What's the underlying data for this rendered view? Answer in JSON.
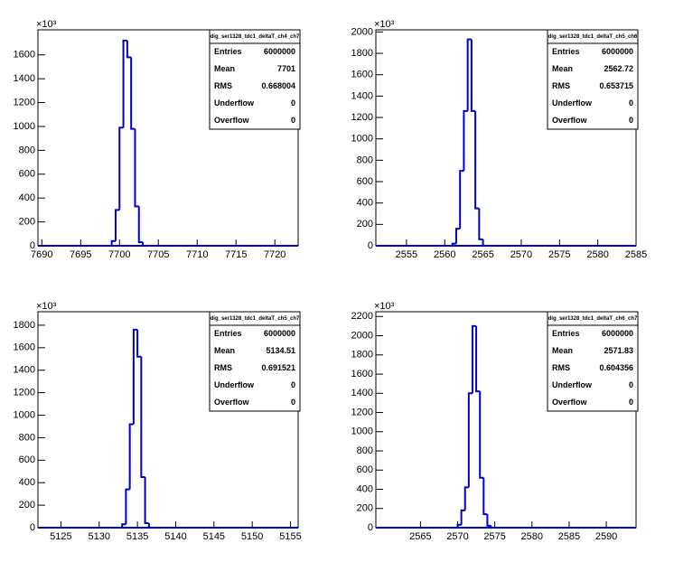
{
  "chart_data": [
    {
      "type": "histogram",
      "y_exponent_label": "×10³",
      "bins": [
        7699,
        7699.5,
        7700,
        7700.5,
        7701,
        7701.5,
        7702,
        7702.5,
        7703
      ],
      "counts": [
        40,
        300,
        990,
        1720,
        1580,
        980,
        330,
        30
      ],
      "color": "#0000cc",
      "xlim": [
        7689.5,
        7723
      ],
      "xticks": [
        7690,
        7695,
        7700,
        7705,
        7710,
        7715,
        7720
      ],
      "ylim": [
        0,
        1810
      ],
      "yticks": [
        0,
        200,
        400,
        600,
        800,
        1000,
        1200,
        1400,
        1600
      ],
      "stats": {
        "title": "dig_ser1328_tdc1_deltaT_ch4_ch7",
        "rows": [
          {
            "label": "Entries",
            "value": 6000000
          },
          {
            "label": "Mean",
            "value": 7701
          },
          {
            "label": "RMS",
            "value": 0.668004
          },
          {
            "label": "Underflow",
            "value": 0
          },
          {
            "label": "Overflow",
            "value": 0
          }
        ]
      }
    },
    {
      "type": "histogram",
      "y_exponent_label": "×10³",
      "bins": [
        2561,
        2561.5,
        2562,
        2562.5,
        2563,
        2563.5,
        2564,
        2564.5,
        2565
      ],
      "counts": [
        20,
        160,
        700,
        1260,
        1930,
        1260,
        350,
        60
      ],
      "color": "#0000cc",
      "xlim": [
        2551,
        2585
      ],
      "xticks": [
        2555,
        2560,
        2565,
        2570,
        2575,
        2580,
        2585
      ],
      "ylim": [
        0,
        2020
      ],
      "yticks": [
        0,
        200,
        400,
        600,
        800,
        1000,
        1200,
        1400,
        1600,
        1800,
        2000
      ],
      "stats": {
        "title": "dig_ser1328_tdc1_deltaT_ch5_ch6",
        "rows": [
          {
            "label": "Entries",
            "value": 6000000
          },
          {
            "label": "Mean",
            "value": 2562.72
          },
          {
            "label": "RMS",
            "value": 0.653715
          },
          {
            "label": "Underflow",
            "value": 0
          },
          {
            "label": "Overflow",
            "value": 0
          }
        ]
      }
    },
    {
      "type": "histogram",
      "y_exponent_label": "×10³",
      "bins": [
        5133,
        5133.5,
        5134,
        5134.5,
        5135,
        5135.5,
        5136,
        5136.5
      ],
      "counts": [
        30,
        340,
        920,
        1760,
        1520,
        450,
        40
      ],
      "color": "#0000cc",
      "xlim": [
        5122,
        5156
      ],
      "xticks": [
        5125,
        5130,
        5135,
        5140,
        5145,
        5150,
        5155
      ],
      "ylim": [
        0,
        1920
      ],
      "yticks": [
        0,
        200,
        400,
        600,
        800,
        1000,
        1200,
        1400,
        1600,
        1800
      ],
      "stats": {
        "title": "dig_ser1328_tdc1_deltaT_ch5_ch7",
        "rows": [
          {
            "label": "Entries",
            "value": 6000000
          },
          {
            "label": "Mean",
            "value": 5134.51
          },
          {
            "label": "RMS",
            "value": 0.691521
          },
          {
            "label": "Underflow",
            "value": 0
          },
          {
            "label": "Overflow",
            "value": 0
          }
        ]
      }
    },
    {
      "type": "histogram",
      "y_exponent_label": "×10³",
      "bins": [
        2570,
        2570.5,
        2571,
        2571.5,
        2572,
        2572.5,
        2573,
        2573.5,
        2574,
        2574.5
      ],
      "counts": [
        30,
        180,
        420,
        1400,
        2100,
        1420,
        520,
        140,
        20
      ],
      "color": "#0000cc",
      "xlim": [
        2559,
        2594
      ],
      "xticks": [
        2565,
        2570,
        2575,
        2580,
        2585,
        2590
      ],
      "ylim": [
        0,
        2250
      ],
      "yticks": [
        0,
        200,
        400,
        600,
        800,
        1000,
        1200,
        1400,
        1600,
        1800,
        2000,
        2200
      ],
      "stats": {
        "title": "dig_ser1328_tdc1_deltaT_ch6_ch7",
        "rows": [
          {
            "label": "Entries",
            "value": 6000000
          },
          {
            "label": "Mean",
            "value": 2571.83
          },
          {
            "label": "RMS",
            "value": 0.604356
          },
          {
            "label": "Underflow",
            "value": 0
          },
          {
            "label": "Overflow",
            "value": 0
          }
        ]
      }
    }
  ]
}
